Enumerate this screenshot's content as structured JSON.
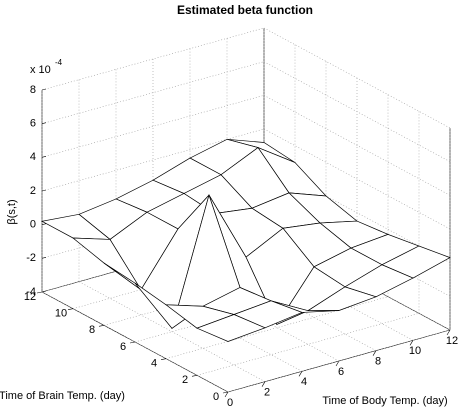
{
  "chart_data": {
    "type": "surface",
    "title": "Estimated beta function",
    "xlabel": "Time of Body Temp. (day)",
    "ylabel": "Time of Brain Temp. (day)",
    "zlabel": "β(s,t)",
    "z_multiplier": {
      "base": "x 10",
      "exponent": "-4"
    },
    "x": [
      0,
      2,
      4,
      6,
      8,
      10,
      12
    ],
    "y": [
      0,
      2,
      4,
      6,
      8,
      10,
      12
    ],
    "z": [
      [
        -1.0,
        -0.8,
        -0.5,
        -1.0,
        -0.8,
        -0.3,
        0.3
      ],
      [
        -1.2,
        -1.0,
        -0.8,
        -2.0,
        -1.2,
        -0.5,
        0.0
      ],
      [
        -0.8,
        -1.5,
        -1.0,
        -3.8,
        -1.0,
        -0.5,
        -0.3
      ],
      [
        -0.5,
        -3.8,
        3.5,
        -0.8,
        0.3,
        0.0,
        -0.5
      ],
      [
        -0.3,
        -2.5,
        0.5,
        0.8,
        0.5,
        0.8,
        0.0
      ],
      [
        0.2,
        -0.5,
        0.5,
        1.0,
        1.5,
        2.5,
        1.0
      ],
      [
        0.2,
        0.0,
        0.3,
        0.8,
        1.5,
        2.0,
        1.2
      ]
    ],
    "xlim": [
      0,
      12
    ],
    "ylim": [
      0,
      12
    ],
    "zlim": [
      -4,
      8
    ],
    "xticks": [
      0,
      2,
      4,
      6,
      8,
      10,
      12
    ],
    "yticks": [
      0,
      2,
      4,
      6,
      8,
      10,
      12
    ],
    "zticks": [
      -4,
      -2,
      0,
      2,
      4,
      6,
      8
    ],
    "grid": true,
    "color": "#ffffff"
  }
}
